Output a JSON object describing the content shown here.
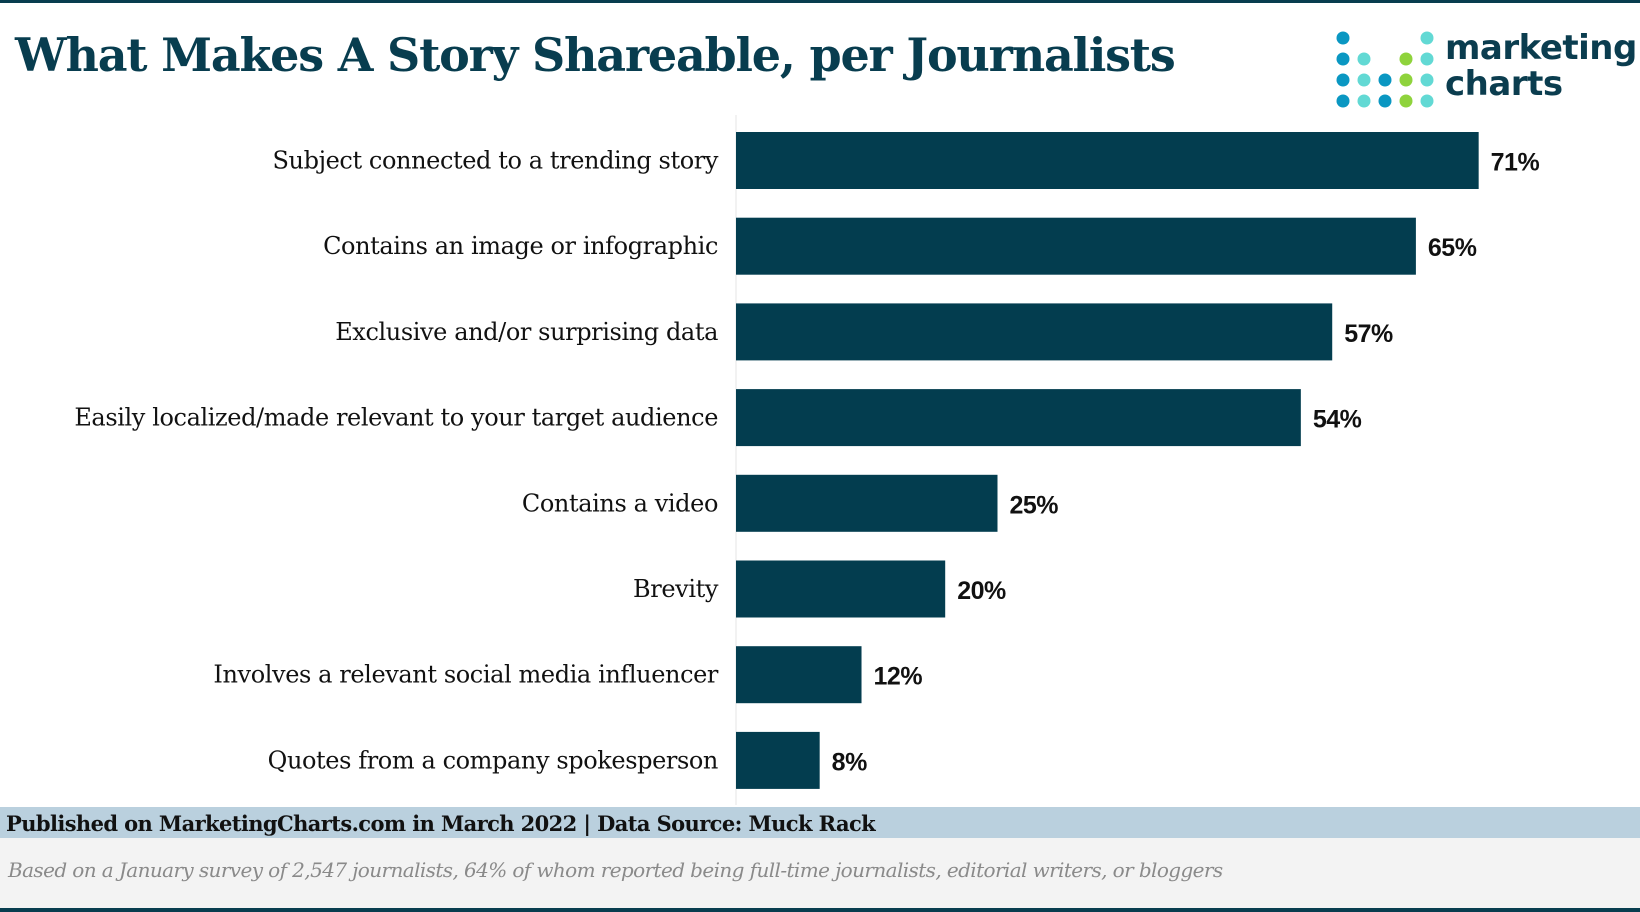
{
  "header": {
    "title": "What Makes A Story Shareable, per Journalists"
  },
  "logo": {
    "line1": "marketing",
    "line2": "charts",
    "colors": [
      "#0a97c2",
      "#62d9d4",
      "#8fd33c"
    ]
  },
  "chart_data": {
    "type": "bar",
    "orientation": "horizontal",
    "title": "What Makes A Story Shareable, per Journalists",
    "categories": [
      "Subject connected to a trending story",
      "Contains an image or infographic",
      "Exclusive and/or surprising data",
      "Easily localized/made relevant to your target audience",
      "Contains a video",
      "Brevity",
      "Involves a relevant social media influencer",
      "Quotes from a company spokesperson"
    ],
    "values": [
      71,
      65,
      57,
      54,
      25,
      20,
      12,
      8
    ],
    "data_labels": [
      "71%",
      "65%",
      "57%",
      "54%",
      "25%",
      "20%",
      "12%",
      "8%"
    ],
    "unit": "%",
    "xlim": [
      0,
      80
    ],
    "grid": false,
    "bar_color": "#033d4f"
  },
  "footer": {
    "source": "Published on MarketingCharts.com in March 2022 | Data Source: Muck Rack",
    "note": "Based on a January survey of 2,547 journalists, 64% of whom reported being full-time journalists, editorial writers, or bloggers"
  }
}
